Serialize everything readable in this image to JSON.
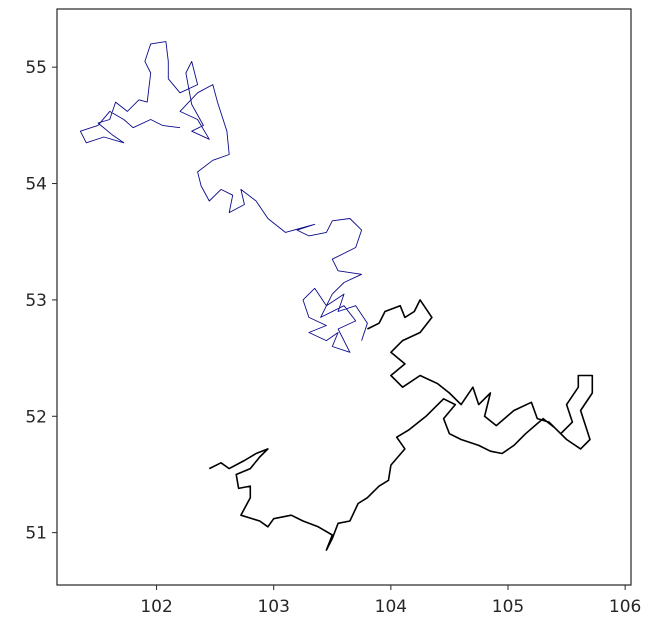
{
  "chart_data": {
    "type": "line",
    "title": "",
    "xlabel": "",
    "ylabel": "",
    "xlim": [
      101.15,
      106.05
    ],
    "ylim": [
      50.55,
      55.5
    ],
    "x_ticks": [
      102,
      103,
      104,
      105,
      106
    ],
    "y_ticks": [
      51,
      52,
      53,
      54,
      55
    ],
    "x_tick_labels": [
      "102",
      "103",
      "104",
      "105",
      "106"
    ],
    "y_tick_labels": [
      "51",
      "52",
      "53",
      "54",
      "55"
    ],
    "grid": false,
    "legend": "none",
    "series": [
      {
        "color": "#0b0b8c",
        "line_width": 0.9,
        "points": [
          [
            103.75,
            52.65
          ],
          [
            103.8,
            52.8
          ],
          [
            103.7,
            52.95
          ],
          [
            103.55,
            52.9
          ],
          [
            103.6,
            53.05
          ],
          [
            103.45,
            52.95
          ],
          [
            103.35,
            53.1
          ],
          [
            103.25,
            53.0
          ],
          [
            103.3,
            52.85
          ],
          [
            103.45,
            52.78
          ],
          [
            103.3,
            52.72
          ],
          [
            103.45,
            52.65
          ],
          [
            103.55,
            52.72
          ],
          [
            103.5,
            52.6
          ],
          [
            103.65,
            52.55
          ],
          [
            103.55,
            52.75
          ],
          [
            103.7,
            52.82
          ],
          [
            103.6,
            52.95
          ],
          [
            103.4,
            52.85
          ],
          [
            103.5,
            53.05
          ],
          [
            103.6,
            53.15
          ],
          [
            103.75,
            53.22
          ],
          [
            103.55,
            53.25
          ],
          [
            103.5,
            53.35
          ],
          [
            103.7,
            53.45
          ],
          [
            103.75,
            53.6
          ],
          [
            103.65,
            53.7
          ],
          [
            103.5,
            53.68
          ],
          [
            103.45,
            53.58
          ],
          [
            103.3,
            53.55
          ],
          [
            103.2,
            53.6
          ],
          [
            103.35,
            53.65
          ],
          [
            103.1,
            53.58
          ],
          [
            102.95,
            53.7
          ],
          [
            102.85,
            53.85
          ],
          [
            102.72,
            53.95
          ],
          [
            102.75,
            53.82
          ],
          [
            102.62,
            53.75
          ],
          [
            102.65,
            53.9
          ],
          [
            102.55,
            53.95
          ],
          [
            102.45,
            53.85
          ],
          [
            102.38,
            53.98
          ],
          [
            102.35,
            54.1
          ],
          [
            102.48,
            54.2
          ],
          [
            102.62,
            54.25
          ],
          [
            102.6,
            54.45
          ],
          [
            102.52,
            54.7
          ],
          [
            102.48,
            54.85
          ],
          [
            102.35,
            54.78
          ],
          [
            102.2,
            54.62
          ],
          [
            102.35,
            54.55
          ],
          [
            102.45,
            54.38
          ],
          [
            102.3,
            54.45
          ],
          [
            102.4,
            54.5
          ],
          [
            102.3,
            54.68
          ],
          [
            102.25,
            54.95
          ],
          [
            102.3,
            55.05
          ],
          [
            102.35,
            54.85
          ],
          [
            102.2,
            54.78
          ],
          [
            102.1,
            54.9
          ],
          [
            102.1,
            55.05
          ],
          [
            102.08,
            55.22
          ],
          [
            101.95,
            55.2
          ],
          [
            101.9,
            55.05
          ],
          [
            101.95,
            54.95
          ],
          [
            101.92,
            54.7
          ],
          [
            101.85,
            54.72
          ],
          [
            101.75,
            54.62
          ],
          [
            101.65,
            54.7
          ],
          [
            101.6,
            54.55
          ],
          [
            101.5,
            54.52
          ],
          [
            101.62,
            54.42
          ],
          [
            101.72,
            54.35
          ],
          [
            101.55,
            54.4
          ],
          [
            101.4,
            54.35
          ],
          [
            101.35,
            54.45
          ],
          [
            101.5,
            54.5
          ],
          [
            101.6,
            54.62
          ],
          [
            101.72,
            54.55
          ],
          [
            101.8,
            54.48
          ],
          [
            101.95,
            54.55
          ],
          [
            102.05,
            54.5
          ],
          [
            102.2,
            54.48
          ]
        ]
      },
      {
        "color": "#000000",
        "line_width": 1.6,
        "points": [
          [
            103.8,
            52.75
          ],
          [
            103.9,
            52.8
          ],
          [
            103.95,
            52.9
          ],
          [
            104.08,
            52.95
          ],
          [
            104.12,
            52.85
          ],
          [
            104.2,
            52.9
          ],
          [
            104.25,
            53.0
          ],
          [
            104.35,
            52.85
          ],
          [
            104.25,
            52.72
          ],
          [
            104.1,
            52.65
          ],
          [
            104.0,
            52.55
          ],
          [
            104.12,
            52.45
          ],
          [
            104.0,
            52.35
          ],
          [
            104.1,
            52.25
          ],
          [
            104.25,
            52.35
          ],
          [
            104.4,
            52.28
          ],
          [
            104.5,
            52.2
          ],
          [
            104.6,
            52.1
          ],
          [
            104.7,
            52.25
          ],
          [
            104.75,
            52.1
          ],
          [
            104.85,
            52.2
          ],
          [
            104.8,
            52.0
          ],
          [
            104.9,
            51.92
          ],
          [
            105.05,
            52.05
          ],
          [
            105.2,
            52.12
          ],
          [
            105.25,
            51.98
          ],
          [
            105.35,
            51.95
          ],
          [
            105.45,
            51.85
          ],
          [
            105.55,
            51.95
          ],
          [
            105.5,
            52.1
          ],
          [
            105.6,
            52.25
          ],
          [
            105.6,
            52.35
          ],
          [
            105.72,
            52.35
          ],
          [
            105.72,
            52.2
          ],
          [
            105.62,
            52.05
          ],
          [
            105.7,
            51.8
          ],
          [
            105.62,
            51.72
          ],
          [
            105.5,
            51.8
          ],
          [
            105.4,
            51.9
          ],
          [
            105.3,
            51.98
          ],
          [
            105.15,
            51.85
          ],
          [
            105.05,
            51.75
          ],
          [
            104.95,
            51.68
          ],
          [
            104.85,
            51.7
          ],
          [
            104.75,
            51.75
          ],
          [
            104.6,
            51.8
          ],
          [
            104.5,
            51.85
          ],
          [
            104.45,
            51.98
          ],
          [
            104.55,
            52.1
          ],
          [
            104.45,
            52.15
          ],
          [
            104.3,
            52.0
          ],
          [
            104.15,
            51.88
          ],
          [
            104.05,
            51.82
          ],
          [
            104.12,
            51.72
          ],
          [
            104.0,
            51.58
          ],
          [
            103.98,
            51.45
          ],
          [
            103.9,
            51.4
          ],
          [
            103.8,
            51.3
          ],
          [
            103.72,
            51.25
          ],
          [
            103.65,
            51.1
          ],
          [
            103.55,
            51.08
          ],
          [
            103.5,
            50.95
          ],
          [
            103.45,
            50.85
          ],
          [
            103.5,
            50.98
          ],
          [
            103.38,
            51.05
          ],
          [
            103.25,
            51.1
          ],
          [
            103.15,
            51.15
          ],
          [
            103.0,
            51.12
          ],
          [
            102.95,
            51.05
          ],
          [
            102.88,
            51.1
          ],
          [
            102.72,
            51.15
          ],
          [
            102.8,
            51.3
          ],
          [
            102.8,
            51.4
          ],
          [
            102.7,
            51.38
          ],
          [
            102.68,
            51.5
          ],
          [
            102.8,
            51.55
          ],
          [
            102.88,
            51.65
          ],
          [
            102.95,
            51.72
          ],
          [
            102.85,
            51.68
          ],
          [
            102.75,
            51.62
          ],
          [
            102.62,
            51.55
          ],
          [
            102.55,
            51.6
          ],
          [
            102.45,
            51.55
          ]
        ]
      }
    ]
  }
}
